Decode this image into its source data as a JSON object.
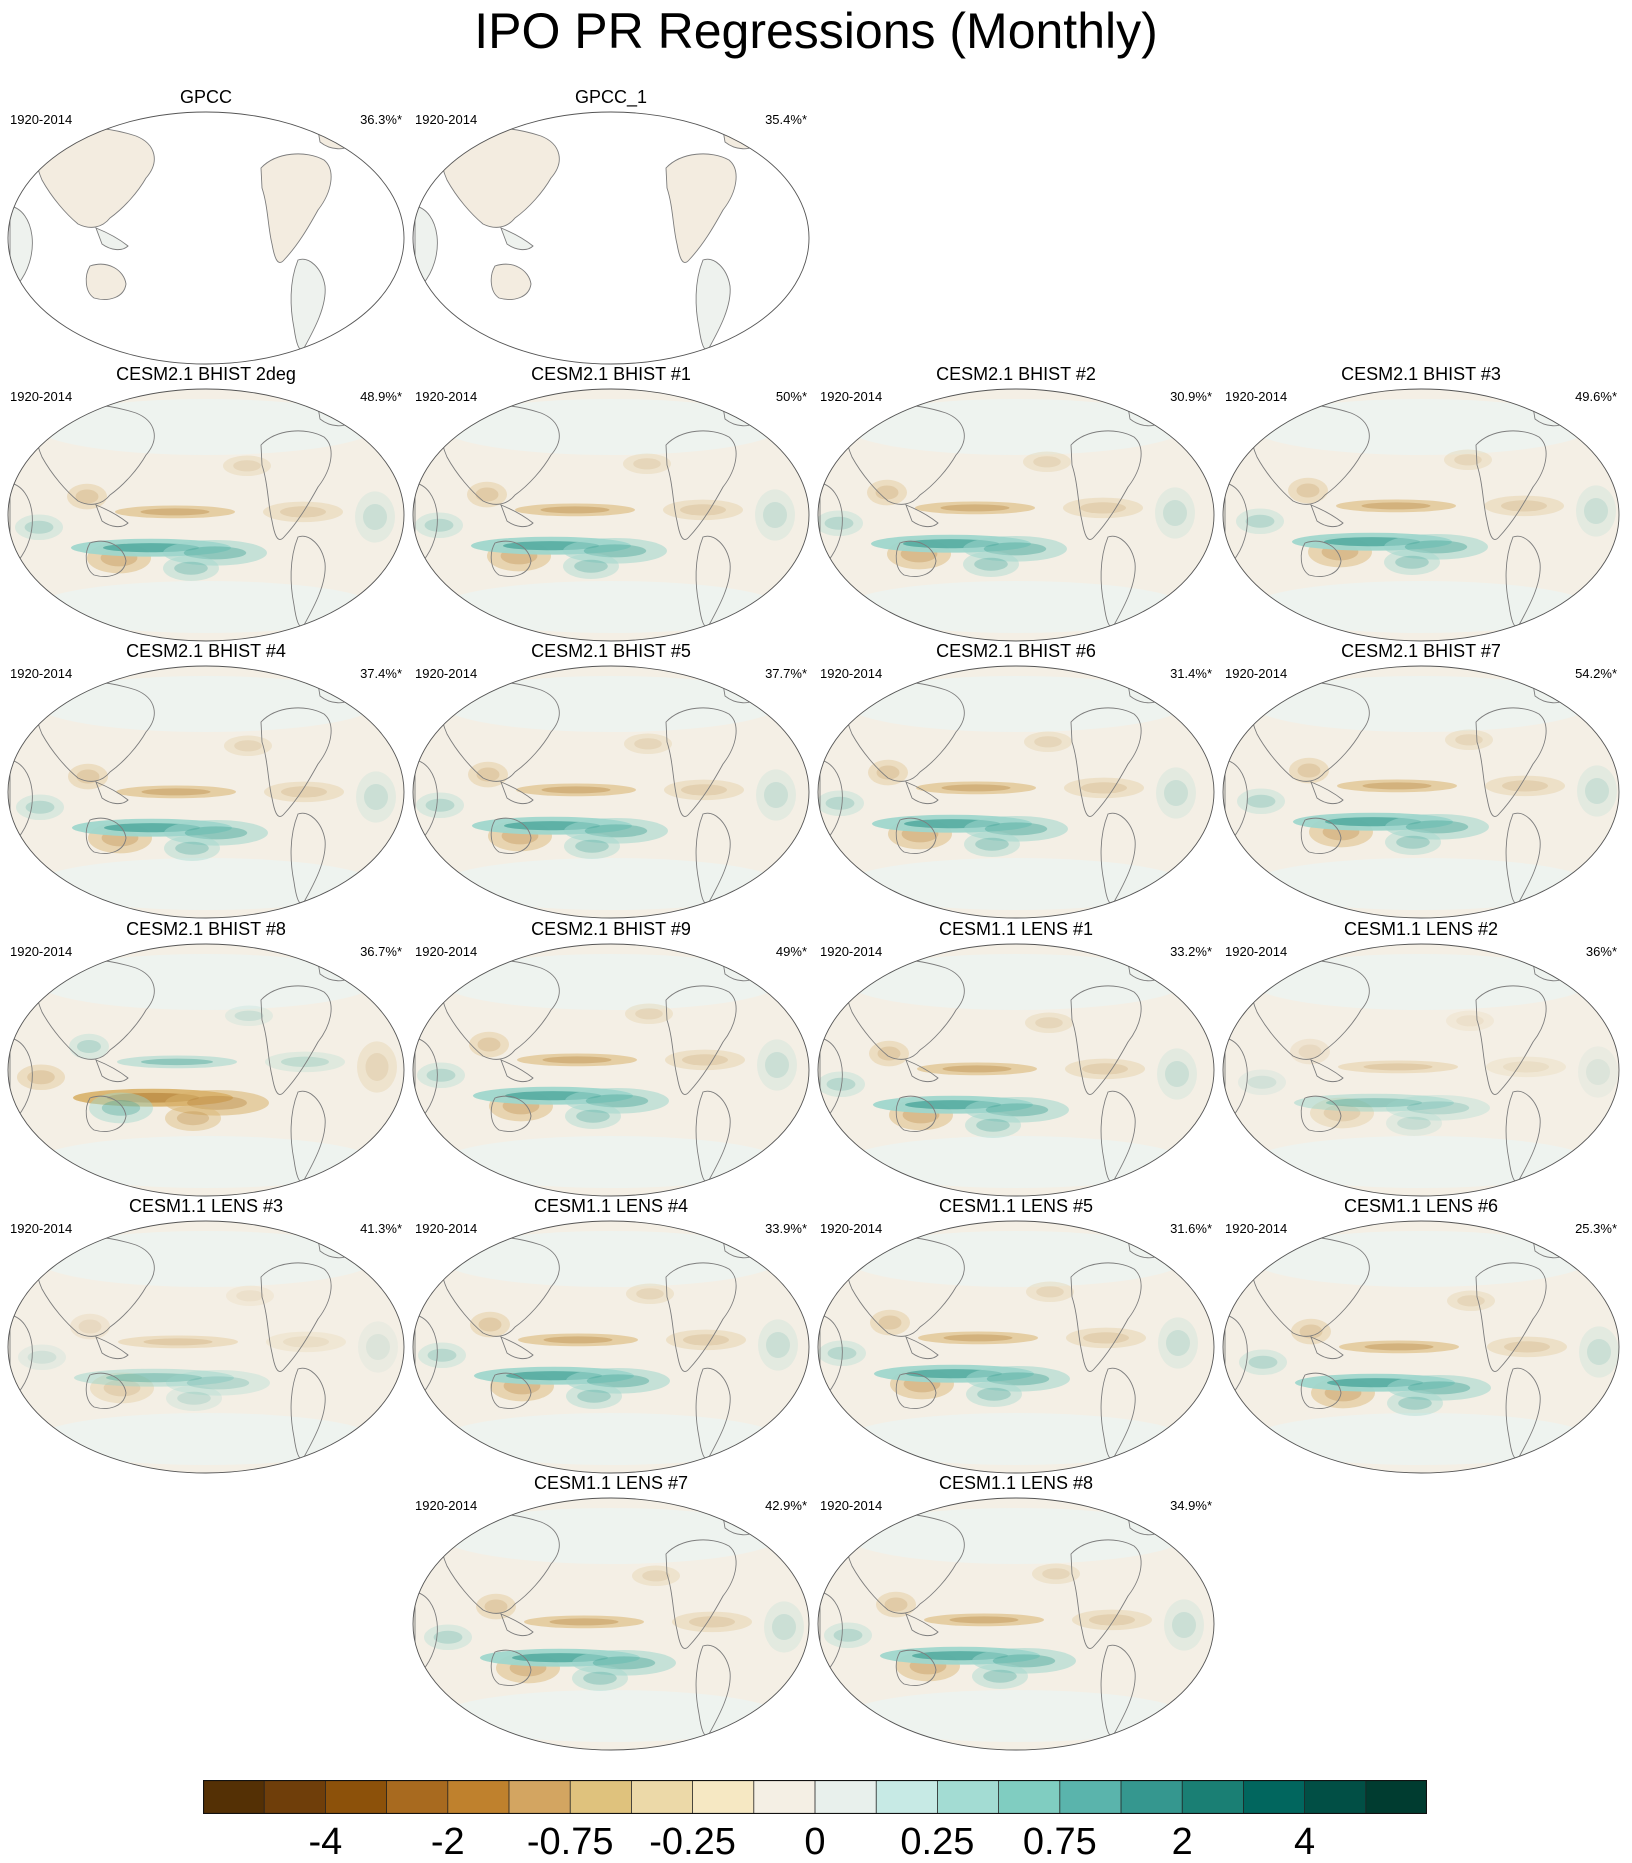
{
  "title": "IPO PR Regressions (Monthly)",
  "panels": [
    {
      "title": "GPCC",
      "period": "1920-2014",
      "pct": "36.3%*",
      "type": "obs",
      "row": 0,
      "col": 0
    },
    {
      "title": "GPCC_1",
      "period": "1920-2014",
      "pct": "35.4%*",
      "type": "obs",
      "row": 0,
      "col": 1
    },
    {
      "title": "CESM2.1 BHIST 2deg",
      "period": "1920-2014",
      "pct": "48.9%*",
      "type": "model",
      "row": 1,
      "col": 0
    },
    {
      "title": "CESM2.1 BHIST #1",
      "period": "1920-2014",
      "pct": "50%*",
      "type": "model",
      "row": 1,
      "col": 1
    },
    {
      "title": "CESM2.1 BHIST #2",
      "period": "1920-2014",
      "pct": "30.9%*",
      "type": "model",
      "row": 1,
      "col": 2
    },
    {
      "title": "CESM2.1 BHIST #3",
      "period": "1920-2014",
      "pct": "49.6%*",
      "type": "model",
      "row": 1,
      "col": 3
    },
    {
      "title": "CESM2.1 BHIST #4",
      "period": "1920-2014",
      "pct": "37.4%*",
      "type": "model",
      "row": 2,
      "col": 0
    },
    {
      "title": "CESM2.1 BHIST #5",
      "period": "1920-2014",
      "pct": "37.7%*",
      "type": "model",
      "row": 2,
      "col": 1
    },
    {
      "title": "CESM2.1 BHIST #6",
      "period": "1920-2014",
      "pct": "31.4%*",
      "type": "model",
      "row": 2,
      "col": 2
    },
    {
      "title": "CESM2.1 BHIST #7",
      "period": "1920-2014",
      "pct": "54.2%*",
      "type": "model",
      "row": 2,
      "col": 3
    },
    {
      "title": "CESM2.1 BHIST #8",
      "period": "1920-2014",
      "pct": "36.7%*",
      "type": "model-flip",
      "row": 3,
      "col": 0
    },
    {
      "title": "CESM2.1 BHIST #9",
      "period": "1920-2014",
      "pct": "49%*",
      "type": "model",
      "row": 3,
      "col": 1
    },
    {
      "title": "CESM1.1 LENS #1",
      "period": "1920-2014",
      "pct": "33.2%*",
      "type": "model",
      "row": 3,
      "col": 2
    },
    {
      "title": "CESM1.1 LENS #2",
      "period": "1920-2014",
      "pct": "36%*",
      "type": "model-weak",
      "row": 3,
      "col": 3
    },
    {
      "title": "CESM1.1 LENS #3",
      "period": "1920-2014",
      "pct": "41.3%*",
      "type": "model-weak",
      "row": 4,
      "col": 0
    },
    {
      "title": "CESM1.1 LENS #4",
      "period": "1920-2014",
      "pct": "33.9%*",
      "type": "model",
      "row": 4,
      "col": 1
    },
    {
      "title": "CESM1.1 LENS #5",
      "period": "1920-2014",
      "pct": "31.6%*",
      "type": "model",
      "row": 4,
      "col": 2
    },
    {
      "title": "CESM1.1 LENS #6",
      "period": "1920-2014",
      "pct": "25.3%*",
      "type": "model",
      "row": 4,
      "col": 3
    },
    {
      "title": "CESM1.1 LENS #7",
      "period": "1920-2014",
      "pct": "42.9%*",
      "type": "model",
      "row": 5,
      "col": 1
    },
    {
      "title": "CESM1.1 LENS #8",
      "period": "1920-2014",
      "pct": "34.9%*",
      "type": "model",
      "row": 5,
      "col": 2
    }
  ],
  "colorbar": {
    "colors": [
      "#543005",
      "#6f3e0a",
      "#8c510a",
      "#a86a1f",
      "#bf812d",
      "#d3a561",
      "#dfc27d",
      "#ecd9a8",
      "#f6e8c3",
      "#f4efe4",
      "#e8f0ec",
      "#c7eae5",
      "#a3dcd3",
      "#80cdc1",
      "#5ab4ac",
      "#35978f",
      "#1a7f74",
      "#01665e",
      "#014f45",
      "#003c30"
    ],
    "labels": [
      "-4",
      "-2",
      "-0.75",
      "-0.25",
      "0",
      "0.25",
      "0.75",
      "2",
      "4"
    ]
  }
}
